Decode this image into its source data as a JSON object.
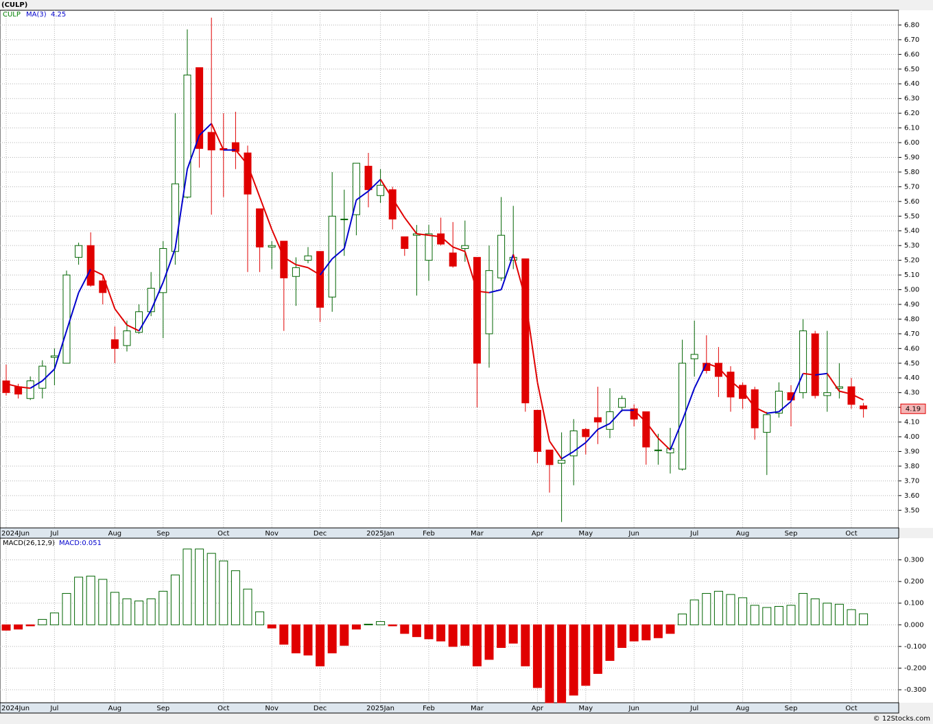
{
  "chart_data": [
    {
      "type": "candlestick",
      "title": "(CULP)",
      "symbol": "CULP",
      "categories": [
        "2024Jun",
        null,
        null,
        null,
        "Jul",
        null,
        null,
        null,
        null,
        "Aug",
        null,
        null,
        null,
        "Sep",
        null,
        null,
        null,
        null,
        "Oct",
        null,
        null,
        null,
        "Nov",
        null,
        null,
        null,
        "Dec",
        null,
        null,
        null,
        null,
        "2025Jan",
        null,
        null,
        null,
        "Feb",
        null,
        null,
        null,
        "Mar",
        null,
        null,
        null,
        null,
        "Apr",
        null,
        null,
        null,
        "May",
        null,
        null,
        null,
        "Jun",
        null,
        null,
        null,
        null,
        "Jul",
        null,
        null,
        null,
        "Aug",
        null,
        null,
        null,
        "Sep",
        null,
        null,
        null,
        null,
        "Oct",
        null
      ],
      "open": [
        4.38,
        4.34,
        4.26,
        4.33,
        4.54,
        4.5,
        5.22,
        5.3,
        5.06,
        4.66,
        4.62,
        4.71,
        4.85,
        4.98,
        5.26,
        5.63,
        6.51,
        6.07,
        5.96,
        6.0,
        5.93,
        5.55,
        5.29,
        5.33,
        5.09,
        5.2,
        5.26,
        4.95,
        5.48,
        5.51,
        5.84,
        5.64,
        5.68,
        5.36,
        5.37,
        5.2,
        5.38,
        5.25,
        5.28,
        5.22,
        4.7,
        5.08,
        5.2,
        5.21,
        4.18,
        3.91,
        3.82,
        3.87,
        4.05,
        4.13,
        4.05,
        4.2,
        4.19,
        4.17,
        3.91,
        3.89,
        3.78,
        4.53,
        4.5,
        4.5,
        4.44,
        4.35,
        4.32,
        4.03,
        4.16,
        4.3,
        4.3,
        4.7,
        4.28,
        4.33,
        4.34,
        4.21
      ],
      "high": [
        4.49,
        4.36,
        4.41,
        4.52,
        4.6,
        5.13,
        5.32,
        5.39,
        5.1,
        4.75,
        4.79,
        4.9,
        5.12,
        5.33,
        6.2,
        6.77,
        6.51,
        6.85,
        6.2,
        6.21,
        5.98,
        5.55,
        5.33,
        5.33,
        5.22,
        5.29,
        5.26,
        5.8,
        5.68,
        5.86,
        5.93,
        5.82,
        5.7,
        5.36,
        5.44,
        5.44,
        5.49,
        5.46,
        5.47,
        5.22,
        5.3,
        5.63,
        5.57,
        5.21,
        4.18,
        3.91,
        4.03,
        4.12,
        4.06,
        4.34,
        4.33,
        4.28,
        4.22,
        4.17,
        4.02,
        4.06,
        4.66,
        4.79,
        4.69,
        4.61,
        4.48,
        4.37,
        4.34,
        4.17,
        4.37,
        4.35,
        4.8,
        4.72,
        4.72,
        4.5,
        4.4,
        4.23
      ],
      "low": [
        4.28,
        4.26,
        4.25,
        4.26,
        4.35,
        4.5,
        5.17,
        5.02,
        4.9,
        4.5,
        4.58,
        4.7,
        4.82,
        4.67,
        5.17,
        5.62,
        5.83,
        5.51,
        5.63,
        5.82,
        5.12,
        5.12,
        5.14,
        4.72,
        4.89,
        5.18,
        4.78,
        4.85,
        5.23,
        5.37,
        5.56,
        5.59,
        5.41,
        5.23,
        4.96,
        5.06,
        5.3,
        5.15,
        5.19,
        4.2,
        4.47,
        5.06,
        5.14,
        4.17,
        3.82,
        3.62,
        3.42,
        3.67,
        3.88,
        3.95,
        3.99,
        4.17,
        4.07,
        3.81,
        3.81,
        3.75,
        3.77,
        4.41,
        4.43,
        4.27,
        4.17,
        4.19,
        3.98,
        3.74,
        4.13,
        4.07,
        4.26,
        4.26,
        4.17,
        4.26,
        4.19,
        4.13
      ],
      "close": [
        4.3,
        4.29,
        4.38,
        4.48,
        4.55,
        5.1,
        5.3,
        5.03,
        4.98,
        4.6,
        4.72,
        4.85,
        5.01,
        5.28,
        5.72,
        6.46,
        5.96,
        5.95,
        5.95,
        5.94,
        5.65,
        5.29,
        5.3,
        5.08,
        5.15,
        5.23,
        4.88,
        5.5,
        5.48,
        5.86,
        5.68,
        5.71,
        5.48,
        5.28,
        5.38,
        5.38,
        5.31,
        5.16,
        5.3,
        4.5,
        5.13,
        5.37,
        5.22,
        4.23,
        3.9,
        3.81,
        3.84,
        4.04,
        4.0,
        4.1,
        4.17,
        4.26,
        4.12,
        3.93,
        3.91,
        3.92,
        4.5,
        4.56,
        4.45,
        4.41,
        4.27,
        4.26,
        4.06,
        4.15,
        4.31,
        4.25,
        4.72,
        4.28,
        4.3,
        4.34,
        4.22,
        4.19
      ],
      "up_color": "#006400",
      "down_color": "#e00000",
      "symbol_color": "#008000",
      "series": [
        {
          "name": "MA(3)",
          "color": "#0000cc",
          "down_color": "#e00000",
          "values": [
            4.36,
            4.34,
            4.33,
            4.38,
            4.46,
            4.72,
            4.98,
            5.14,
            5.1,
            4.87,
            4.76,
            4.72,
            4.86,
            5.05,
            5.28,
            5.82,
            6.05,
            6.13,
            5.95,
            5.95,
            5.85,
            5.63,
            5.41,
            5.22,
            5.17,
            5.15,
            5.1,
            5.21,
            5.28,
            5.61,
            5.67,
            5.75,
            5.62,
            5.49,
            5.38,
            5.37,
            5.36,
            5.29,
            5.26,
            4.99,
            4.98,
            5.0,
            5.24,
            4.94,
            4.37,
            3.97,
            3.85,
            3.9,
            3.96,
            4.05,
            4.09,
            4.18,
            4.18,
            4.1,
            3.99,
            3.91,
            4.11,
            4.33,
            4.5,
            4.47,
            4.38,
            4.31,
            4.2,
            4.16,
            4.17,
            4.24,
            4.43,
            4.42,
            4.43,
            4.31,
            4.29,
            4.25
          ]
        }
      ],
      "ylim": [
        3.38,
        6.9
      ],
      "yticks": [
        {
          "value": 3.5,
          "label": "3.50"
        },
        {
          "value": 3.6,
          "label": "3.60"
        },
        {
          "value": 3.7,
          "label": "3.70"
        },
        {
          "value": 3.8,
          "label": "3.80"
        },
        {
          "value": 3.9,
          "label": "3.90"
        },
        {
          "value": 4.0,
          "label": "4.00"
        },
        {
          "value": 4.1,
          "label": "4.10"
        },
        {
          "value": 4.2,
          "label": "4.20"
        },
        {
          "value": 4.3,
          "label": "4.30"
        },
        {
          "value": 4.4,
          "label": "4.40"
        },
        {
          "value": 4.5,
          "label": "4.50"
        },
        {
          "value": 4.6,
          "label": "4.60"
        },
        {
          "value": 4.7,
          "label": "4.70"
        },
        {
          "value": 4.8,
          "label": "4.80"
        },
        {
          "value": 4.9,
          "label": "4.90"
        },
        {
          "value": 5.0,
          "label": "5.00"
        },
        {
          "value": 5.1,
          "label": "5.10"
        },
        {
          "value": 5.2,
          "label": "5.20"
        },
        {
          "value": 5.3,
          "label": "5.30"
        },
        {
          "value": 5.4,
          "label": "5.40"
        },
        {
          "value": 5.5,
          "label": "5.50"
        },
        {
          "value": 5.6,
          "label": "5.60"
        },
        {
          "value": 5.7,
          "label": "5.70"
        },
        {
          "value": 5.8,
          "label": "5.80"
        },
        {
          "value": 5.9,
          "label": "5.90"
        },
        {
          "value": 6.0,
          "label": "6.00"
        },
        {
          "value": 6.1,
          "label": "6.10"
        },
        {
          "value": 6.2,
          "label": "6.20"
        },
        {
          "value": 6.3,
          "label": "6.30"
        },
        {
          "value": 6.4,
          "label": "6.40"
        },
        {
          "value": 6.5,
          "label": "6.50"
        },
        {
          "value": 6.6,
          "label": "6.60"
        },
        {
          "value": 6.7,
          "label": "6.70"
        },
        {
          "value": 6.8,
          "label": "6.80"
        }
      ],
      "grid": true
    },
    {
      "type": "bar",
      "title": "MACD(26,12,9)",
      "subtitle": "MACD:0.051",
      "values": [
        -0.025,
        -0.02,
        -0.005,
        0.025,
        0.055,
        0.145,
        0.22,
        0.225,
        0.21,
        0.15,
        0.12,
        0.11,
        0.12,
        0.155,
        0.23,
        0.35,
        0.35,
        0.33,
        0.295,
        0.25,
        0.165,
        0.06,
        -0.015,
        -0.09,
        -0.13,
        -0.14,
        -0.19,
        -0.13,
        -0.095,
        -0.02,
        0.003,
        0.015,
        -0.005,
        -0.04,
        -0.055,
        -0.065,
        -0.075,
        -0.1,
        -0.095,
        -0.19,
        -0.16,
        -0.105,
        -0.085,
        -0.19,
        -0.29,
        -0.36,
        -0.36,
        -0.325,
        -0.28,
        -0.225,
        -0.165,
        -0.105,
        -0.075,
        -0.07,
        -0.06,
        -0.04,
        0.05,
        0.115,
        0.145,
        0.155,
        0.14,
        0.125,
        0.09,
        0.08,
        0.085,
        0.09,
        0.145,
        0.12,
        0.1,
        0.095,
        0.07,
        0.051
      ],
      "up_color": "#006400",
      "down_color": "#e00000",
      "ylim": [
        -0.36,
        0.4
      ],
      "yticks": [
        {
          "value": -0.3,
          "label": "-0.300"
        },
        {
          "value": -0.2,
          "label": "-0.200"
        },
        {
          "value": -0.1,
          "label": "-0.100"
        },
        {
          "value": 0,
          "label": "0.000"
        },
        {
          "value": 0.1,
          "label": "0.100"
        },
        {
          "value": 0.2,
          "label": "0.200"
        },
        {
          "value": 0.3,
          "label": "0.300"
        }
      ],
      "grid": true
    }
  ],
  "footer": "© 12Stocks.com"
}
